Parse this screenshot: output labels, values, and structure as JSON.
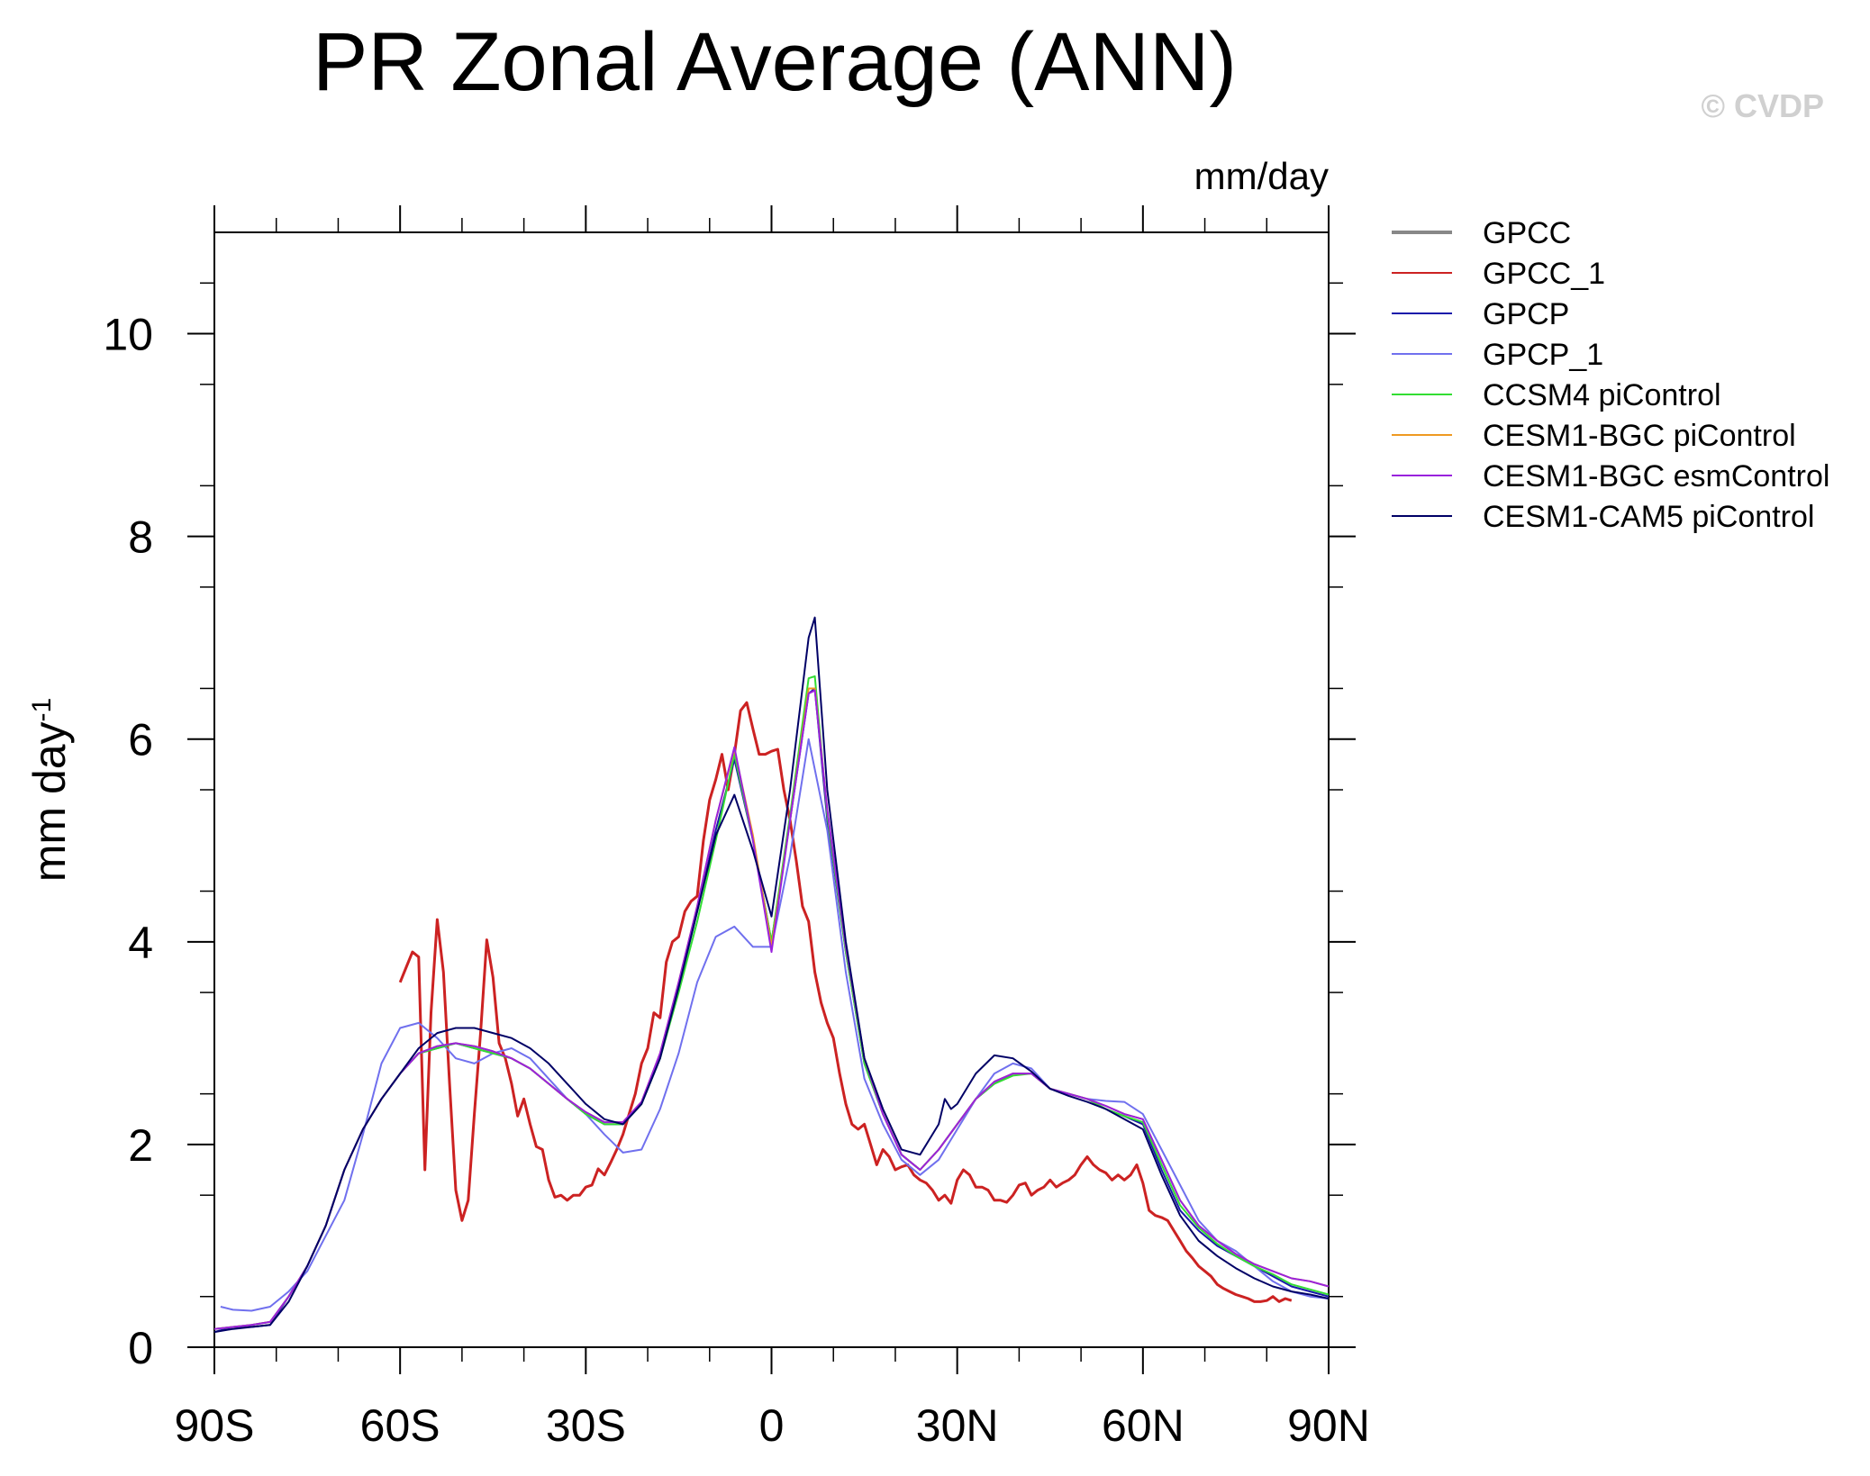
{
  "chart_data": {
    "type": "line",
    "title": "PR Zonal Average (ANN)",
    "subtitle": "mm/day",
    "ylabel": "mm day",
    "ylabel_superscript": "-1",
    "watermark": "© CVDP",
    "xlim": [
      -90,
      90
    ],
    "ylim": [
      0,
      11
    ],
    "x_tick_values": [
      -90,
      -60,
      -30,
      0,
      30,
      60,
      90
    ],
    "x_tick_labels": [
      "90S",
      "60S",
      "30S",
      "0",
      "30N",
      "60N",
      "90N"
    ],
    "y_tick_values": [
      0,
      2,
      4,
      6,
      8,
      10
    ],
    "y_tick_labels": [
      "0",
      "2",
      "4",
      "6",
      "8",
      "10"
    ],
    "grid": false,
    "legend_position": "right",
    "series": [
      {
        "name": "GPCC",
        "color": "#888888",
        "x": [],
        "y": []
      },
      {
        "name": "GPCC_1",
        "color": "#cc2222",
        "x": [
          -60,
          -59,
          -58,
          -57,
          -56,
          -55,
          -54,
          -53,
          -52,
          -51,
          -50,
          -49,
          -48,
          -47,
          -46,
          -45,
          -44,
          -43,
          -42,
          -41,
          -40,
          -39,
          -38,
          -37,
          -36,
          -35,
          -34,
          -33,
          -32,
          -31,
          -30,
          -29,
          -28,
          -27,
          -26,
          -25,
          -24,
          -23,
          -22,
          -21,
          -20,
          -19,
          -18,
          -17,
          -16,
          -15,
          -14,
          -13,
          -12,
          -11,
          -10,
          -9,
          -8,
          -7,
          -6,
          -5,
          -4,
          -3,
          -2,
          -1,
          0,
          1,
          2,
          3,
          4,
          5,
          6,
          7,
          8,
          9,
          10,
          11,
          12,
          13,
          14,
          15,
          16,
          17,
          18,
          19,
          20,
          21,
          22,
          23,
          24,
          25,
          26,
          27,
          28,
          29,
          30,
          31,
          32,
          33,
          34,
          35,
          36,
          37,
          38,
          39,
          40,
          41,
          42,
          43,
          44,
          45,
          46,
          47,
          48,
          49,
          50,
          51,
          52,
          53,
          54,
          55,
          56,
          57,
          58,
          59,
          60,
          61,
          62,
          63,
          64,
          65,
          66,
          67,
          68,
          69,
          70,
          71,
          72,
          73,
          74,
          75,
          76,
          77,
          78,
          79,
          80,
          81,
          82,
          83,
          84
        ],
        "y": [
          3.6,
          3.75,
          3.9,
          3.85,
          1.75,
          3.3,
          4.22,
          3.7,
          2.6,
          1.55,
          1.25,
          1.45,
          2.3,
          3.1,
          4.02,
          3.65,
          3.0,
          2.85,
          2.6,
          2.28,
          2.45,
          2.2,
          1.98,
          1.95,
          1.65,
          1.48,
          1.5,
          1.45,
          1.5,
          1.5,
          1.58,
          1.6,
          1.76,
          1.7,
          1.82,
          1.95,
          2.1,
          2.3,
          2.5,
          2.8,
          2.95,
          3.3,
          3.25,
          3.8,
          4.0,
          4.05,
          4.3,
          4.4,
          4.45,
          5.0,
          5.4,
          5.6,
          5.85,
          5.5,
          5.85,
          6.28,
          6.36,
          6.1,
          5.85,
          5.85,
          5.88,
          5.9,
          5.5,
          5.2,
          4.8,
          4.35,
          4.2,
          3.7,
          3.4,
          3.2,
          3.05,
          2.7,
          2.4,
          2.2,
          2.15,
          2.2,
          2.0,
          1.8,
          1.95,
          1.88,
          1.75,
          1.78,
          1.8,
          1.7,
          1.65,
          1.62,
          1.55,
          1.45,
          1.5,
          1.42,
          1.65,
          1.75,
          1.7,
          1.58,
          1.58,
          1.55,
          1.45,
          1.45,
          1.43,
          1.5,
          1.6,
          1.62,
          1.5,
          1.55,
          1.58,
          1.65,
          1.58,
          1.62,
          1.65,
          1.7,
          1.8,
          1.88,
          1.8,
          1.75,
          1.72,
          1.65,
          1.7,
          1.65,
          1.7,
          1.8,
          1.62,
          1.35,
          1.3,
          1.28,
          1.25,
          1.15,
          1.05,
          0.95,
          0.88,
          0.8,
          0.75,
          0.7,
          0.62,
          0.58,
          0.55,
          0.52,
          0.5,
          0.48,
          0.45,
          0.45,
          0.46,
          0.5,
          0.45,
          0.48,
          0.46
        ]
      },
      {
        "name": "GPCP",
        "color": "#1a1aaa",
        "x": [
          -90,
          -87,
          -84,
          -81,
          -78,
          -75,
          -72,
          -69,
          -66,
          -63,
          -60,
          -57,
          -54,
          -51,
          -48,
          -45,
          -42,
          -39,
          -36,
          -33,
          -30,
          -27,
          -24,
          -21,
          -18,
          -15,
          -12,
          -9,
          -6,
          -3,
          0,
          3,
          6,
          7,
          9,
          12,
          15,
          18,
          21,
          24,
          27,
          30,
          33,
          36,
          39,
          42,
          45,
          48,
          51,
          54,
          57,
          60,
          63,
          66,
          69,
          72,
          75,
          78,
          81,
          84,
          87,
          90
        ],
        "y": [
          0.15,
          0.2,
          0.2,
          0.22,
          0.5,
          0.8,
          1.2,
          1.75,
          2.15,
          2.45,
          2.7,
          2.9,
          2.95,
          3.0,
          2.95,
          2.9,
          2.85,
          2.75,
          2.6,
          2.45,
          2.3,
          2.2,
          2.2,
          2.4,
          2.85,
          3.55,
          4.3,
          5.1,
          5.8,
          5.0,
          4.0,
          5.2,
          6.45,
          6.5,
          5.2,
          3.9,
          2.8,
          2.3,
          1.9,
          1.75,
          1.95,
          2.2,
          2.45,
          2.6,
          2.7,
          2.7,
          2.55,
          2.5,
          2.45,
          2.35,
          2.28,
          2.2,
          1.75,
          1.35,
          1.15,
          1.0,
          0.9,
          0.8,
          0.7,
          0.6,
          0.55,
          0.5
        ]
      },
      {
        "name": "GPCP_1",
        "color": "#7070ee",
        "x": [
          -89,
          -87,
          -84,
          -81,
          -78,
          -75,
          -72,
          -69,
          -66,
          -63,
          -60,
          -57,
          -54,
          -51,
          -48,
          -45,
          -42,
          -39,
          -36,
          -33,
          -30,
          -27,
          -24,
          -21,
          -18,
          -15,
          -12,
          -9,
          -6,
          -3,
          0,
          3,
          6,
          9,
          12,
          15,
          18,
          21,
          24,
          27,
          30,
          33,
          36,
          39,
          42,
          45,
          48,
          51,
          54,
          57,
          60,
          63,
          66,
          69,
          72,
          75,
          78,
          81,
          84,
          87,
          90
        ],
        "y": [
          0.4,
          0.37,
          0.36,
          0.4,
          0.55,
          0.75,
          1.1,
          1.45,
          2.1,
          2.8,
          3.15,
          3.2,
          3.05,
          2.85,
          2.8,
          2.9,
          2.95,
          2.85,
          2.65,
          2.45,
          2.3,
          2.1,
          1.92,
          1.95,
          2.35,
          2.9,
          3.6,
          4.05,
          4.15,
          3.95,
          3.95,
          4.85,
          6.0,
          5.1,
          3.7,
          2.65,
          2.2,
          1.85,
          1.7,
          1.85,
          2.15,
          2.45,
          2.7,
          2.8,
          2.75,
          2.55,
          2.5,
          2.45,
          2.43,
          2.42,
          2.3,
          1.95,
          1.6,
          1.25,
          1.05,
          0.95,
          0.8,
          0.65,
          0.55,
          0.5,
          0.48
        ]
      },
      {
        "name": "CCSM4 piControl",
        "color": "#33dd33",
        "x": [
          -90,
          -87,
          -84,
          -81,
          -78,
          -75,
          -72,
          -69,
          -66,
          -63,
          -60,
          -57,
          -54,
          -51,
          -48,
          -45,
          -42,
          -39,
          -36,
          -33,
          -30,
          -27,
          -24,
          -21,
          -18,
          -15,
          -12,
          -9,
          -6,
          -3,
          0,
          3,
          6,
          7,
          9,
          12,
          15,
          18,
          21,
          24,
          27,
          30,
          33,
          36,
          39,
          42,
          45,
          48,
          51,
          54,
          57,
          60,
          63,
          66,
          69,
          72,
          75,
          78,
          81,
          84,
          87,
          90
        ],
        "y": [
          0.18,
          0.2,
          0.22,
          0.25,
          0.5,
          0.8,
          1.2,
          1.75,
          2.15,
          2.45,
          2.7,
          2.9,
          2.95,
          3.0,
          2.95,
          2.9,
          2.85,
          2.75,
          2.6,
          2.45,
          2.3,
          2.2,
          2.2,
          2.4,
          2.85,
          3.5,
          4.2,
          5.0,
          5.85,
          5.0,
          4.0,
          5.25,
          6.6,
          6.62,
          5.25,
          3.9,
          2.8,
          2.3,
          1.9,
          1.75,
          1.95,
          2.2,
          2.45,
          2.6,
          2.68,
          2.7,
          2.55,
          2.5,
          2.45,
          2.35,
          2.28,
          2.22,
          1.8,
          1.4,
          1.18,
          1.02,
          0.9,
          0.8,
          0.72,
          0.62,
          0.57,
          0.52
        ]
      },
      {
        "name": "CESM1-BGC piControl",
        "color": "#ee9922",
        "x": [
          -90,
          -87,
          -84,
          -81,
          -78,
          -75,
          -72,
          -69,
          -66,
          -63,
          -60,
          -57,
          -54,
          -51,
          -48,
          -45,
          -42,
          -39,
          -36,
          -33,
          -30,
          -27,
          -24,
          -21,
          -18,
          -15,
          -12,
          -9,
          -6,
          -3,
          0,
          3,
          6,
          7,
          9,
          12,
          15,
          18,
          21,
          24,
          27,
          30,
          33,
          36,
          39,
          42,
          45,
          48,
          51,
          54,
          57,
          60,
          63,
          66,
          69,
          72,
          75,
          78,
          81,
          84,
          87,
          90
        ],
        "y": [
          0.18,
          0.2,
          0.22,
          0.25,
          0.5,
          0.8,
          1.2,
          1.75,
          2.15,
          2.45,
          2.7,
          2.9,
          2.97,
          3.0,
          2.97,
          2.92,
          2.85,
          2.75,
          2.6,
          2.45,
          2.32,
          2.22,
          2.22,
          2.42,
          2.9,
          3.6,
          4.35,
          5.2,
          5.9,
          5.05,
          3.95,
          5.2,
          6.5,
          6.5,
          5.3,
          3.95,
          2.85,
          2.3,
          1.9,
          1.75,
          1.95,
          2.2,
          2.45,
          2.62,
          2.7,
          2.7,
          2.55,
          2.5,
          2.45,
          2.38,
          2.3,
          2.25,
          1.85,
          1.45,
          1.2,
          1.05,
          0.92,
          0.82,
          0.75,
          0.68,
          0.65,
          0.6
        ]
      },
      {
        "name": "CESM1-BGC esmControl",
        "color": "#9922dd",
        "x": [
          -90,
          -87,
          -84,
          -81,
          -78,
          -75,
          -72,
          -69,
          -66,
          -63,
          -60,
          -57,
          -54,
          -51,
          -48,
          -45,
          -42,
          -39,
          -36,
          -33,
          -30,
          -27,
          -24,
          -21,
          -18,
          -15,
          -12,
          -9,
          -6,
          -3,
          0,
          3,
          6,
          7,
          9,
          12,
          15,
          18,
          21,
          24,
          27,
          30,
          33,
          36,
          39,
          42,
          45,
          48,
          51,
          54,
          57,
          60,
          63,
          66,
          69,
          72,
          75,
          78,
          81,
          84,
          87,
          90
        ],
        "y": [
          0.18,
          0.2,
          0.22,
          0.25,
          0.5,
          0.8,
          1.2,
          1.75,
          2.15,
          2.45,
          2.7,
          2.9,
          2.97,
          3.0,
          2.97,
          2.92,
          2.85,
          2.75,
          2.6,
          2.45,
          2.32,
          2.22,
          2.22,
          2.42,
          2.9,
          3.6,
          4.35,
          5.2,
          5.92,
          5.0,
          3.9,
          5.2,
          6.45,
          6.48,
          5.3,
          3.95,
          2.85,
          2.3,
          1.9,
          1.75,
          1.95,
          2.2,
          2.45,
          2.62,
          2.7,
          2.7,
          2.55,
          2.5,
          2.45,
          2.38,
          2.3,
          2.25,
          1.85,
          1.45,
          1.2,
          1.05,
          0.92,
          0.82,
          0.75,
          0.68,
          0.65,
          0.6
        ]
      },
      {
        "name": "CESM1-CAM5 piControl",
        "color": "#000066",
        "x": [
          -90,
          -87,
          -84,
          -81,
          -78,
          -75,
          -72,
          -69,
          -66,
          -63,
          -60,
          -57,
          -54,
          -51,
          -48,
          -45,
          -42,
          -39,
          -36,
          -33,
          -30,
          -27,
          -24,
          -21,
          -18,
          -15,
          -12,
          -9,
          -6,
          -3,
          0,
          3,
          6,
          7,
          9,
          12,
          15,
          18,
          21,
          24,
          27,
          28,
          29,
          30,
          33,
          36,
          39,
          42,
          45,
          48,
          51,
          54,
          57,
          60,
          63,
          66,
          69,
          72,
          75,
          78,
          81,
          84,
          87,
          90
        ],
        "y": [
          0.15,
          0.18,
          0.2,
          0.22,
          0.45,
          0.8,
          1.2,
          1.75,
          2.15,
          2.45,
          2.7,
          2.95,
          3.1,
          3.15,
          3.15,
          3.1,
          3.05,
          2.95,
          2.8,
          2.6,
          2.4,
          2.25,
          2.2,
          2.4,
          2.85,
          3.55,
          4.3,
          5.05,
          5.45,
          4.9,
          4.25,
          5.5,
          7.0,
          7.2,
          5.5,
          4.0,
          2.85,
          2.35,
          1.95,
          1.9,
          2.2,
          2.45,
          2.35,
          2.4,
          2.7,
          2.88,
          2.85,
          2.72,
          2.55,
          2.48,
          2.42,
          2.35,
          2.25,
          2.15,
          1.7,
          1.3,
          1.05,
          0.9,
          0.78,
          0.68,
          0.6,
          0.55,
          0.52,
          0.48
        ]
      }
    ]
  }
}
